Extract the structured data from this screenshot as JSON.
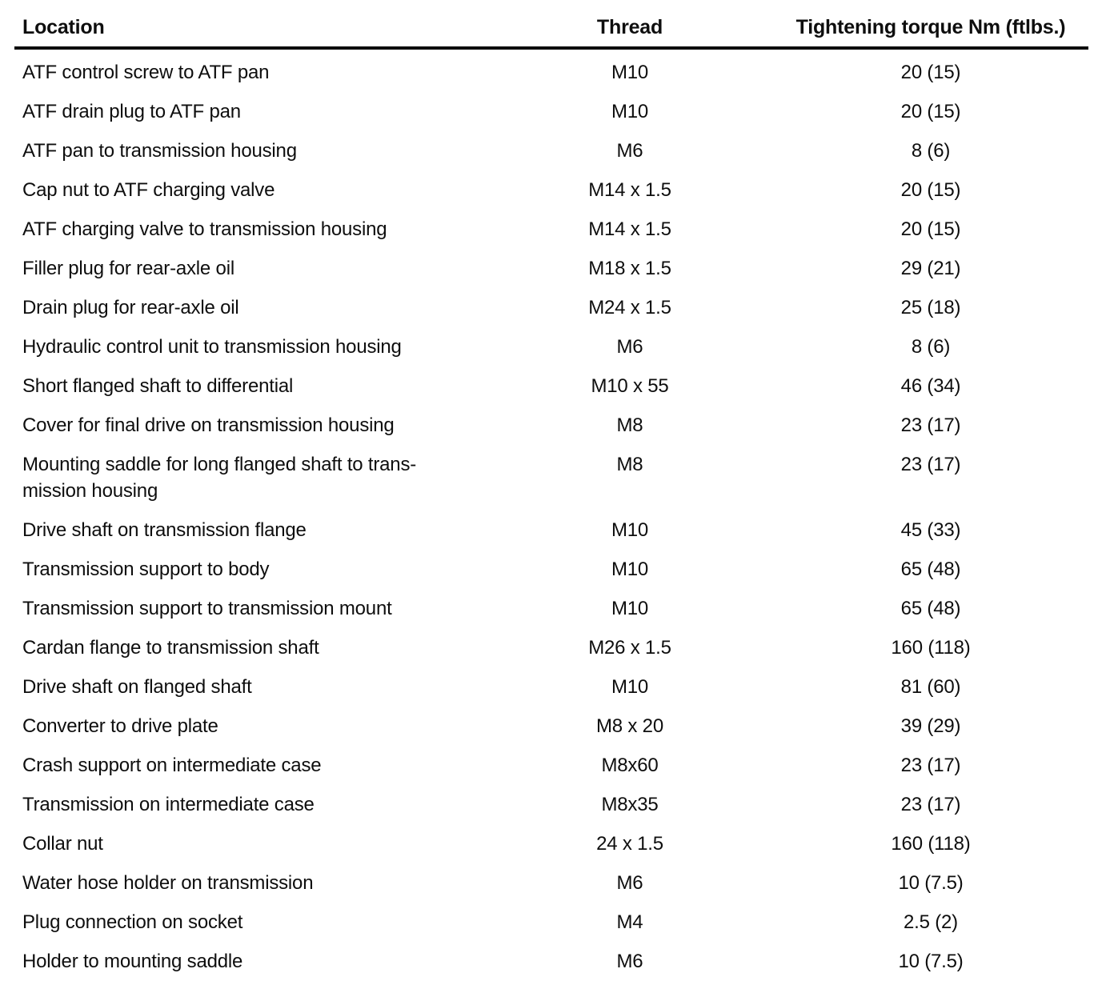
{
  "colors": {
    "background": "#ffffff",
    "text": "#0e0e0e",
    "header_rule": "#0a0a0a"
  },
  "table": {
    "columns": [
      "Location",
      "Thread",
      "Tightening torque Nm (ftlbs.)"
    ],
    "rows": [
      {
        "location": "ATF control screw to ATF pan",
        "thread": "M10",
        "torque": "20 (15)"
      },
      {
        "location": "ATF drain plug to ATF pan",
        "thread": "M10",
        "torque": "20 (15)"
      },
      {
        "location": "ATF pan to transmission housing",
        "thread": "M6",
        "torque": "8 (6)"
      },
      {
        "location": "Cap nut to ATF charging valve",
        "thread": "M14 x 1.5",
        "torque": "20 (15)"
      },
      {
        "location": "ATF charging valve to transmission housing",
        "thread": "M14 x 1.5",
        "torque": "20 (15)"
      },
      {
        "location": "Filler plug for rear-axle oil",
        "thread": "M18 x 1.5",
        "torque": "29 (21)"
      },
      {
        "location": "Drain plug for rear-axle oil",
        "thread": "M24 x 1.5",
        "torque": "25 (18)"
      },
      {
        "location": "Hydraulic control unit to transmission housing",
        "thread": "M6",
        "torque": "8 (6)"
      },
      {
        "location": "Short flanged shaft to differential",
        "thread": "M10 x 55",
        "torque": "46 (34)"
      },
      {
        "location": "Cover for final drive on transmission housing",
        "thread": "M8",
        "torque": "23 (17)"
      },
      {
        "location": "Mounting saddle for long flanged shaft to trans-\nmission housing",
        "thread": "M8",
        "torque": "23 (17)"
      },
      {
        "location": "Drive shaft on transmission flange",
        "thread": "M10",
        "torque": "45 (33)"
      },
      {
        "location": "Transmission support to body",
        "thread": "M10",
        "torque": "65 (48)"
      },
      {
        "location": "Transmission support to transmission mount",
        "thread": "M10",
        "torque": "65 (48)"
      },
      {
        "location": "Cardan flange to transmission shaft",
        "thread": "M26 x 1.5",
        "torque": "160 (118)"
      },
      {
        "location": "Drive shaft on flanged shaft",
        "thread": "M10",
        "torque": "81 (60)"
      },
      {
        "location": "Converter to drive plate",
        "thread": "M8 x 20",
        "torque": "39 (29)"
      },
      {
        "location": "Crash support on intermediate case",
        "thread": "M8x60",
        "torque": "23 (17)"
      },
      {
        "location": "Transmission on intermediate case",
        "thread": "M8x35",
        "torque": "23 (17)"
      },
      {
        "location": "Collar nut",
        "thread": "24 x 1.5",
        "torque": "160 (118)"
      },
      {
        "location": "Water hose holder on transmission",
        "thread": "M6",
        "torque": "10 (7.5)"
      },
      {
        "location": "Plug connection on socket",
        "thread": "M4",
        "torque": "2.5 (2)"
      },
      {
        "location": "Holder to mounting saddle",
        "thread": "M6",
        "torque": "10 (7.5)"
      }
    ]
  }
}
